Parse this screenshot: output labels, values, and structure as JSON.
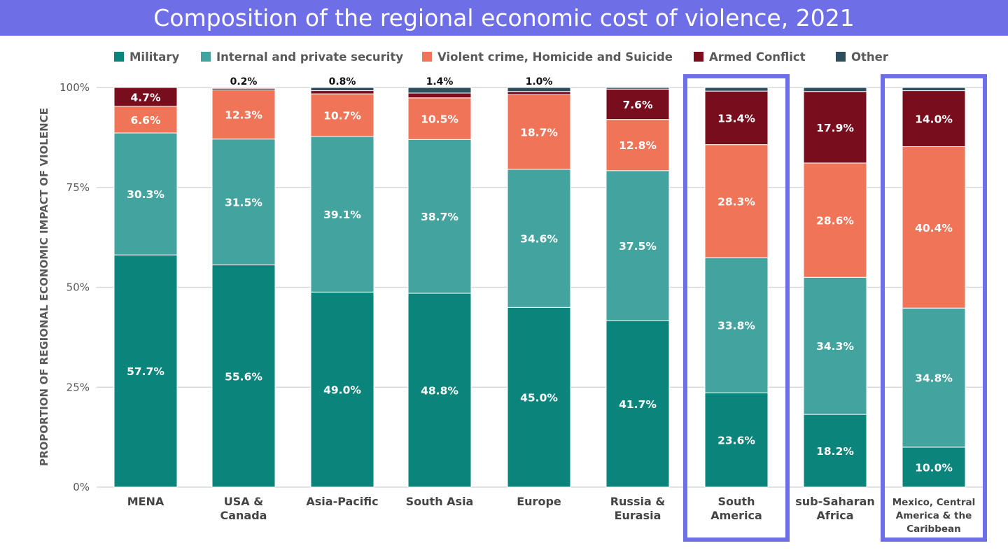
{
  "chart_data": {
    "type": "bar",
    "stacked": true,
    "title": "Composition of the regional economic cost of violence, 2021",
    "ylabel": "PROPORTION OF REGIONAL ECONOMIC IMPACT OF VIOLENCE",
    "xlabel": "",
    "ylim": [
      0,
      100
    ],
    "yticks": [
      "0%",
      "25%",
      "50%",
      "75%",
      "100%"
    ],
    "legend_position": "top",
    "grid": true,
    "categories": [
      "MENA",
      "USA &\nCanada",
      "Asia-Pacific",
      "South Asia",
      "Europe",
      "Russia &\nEurasia",
      "South\nAmerica",
      "sub-Saharan\nAfrica",
      "Mexico, Central\nAmerica & the\nCaribbean"
    ],
    "highlighted_categories": [
      "South\nAmerica",
      "Mexico, Central\nAmerica & the\nCaribbean"
    ],
    "highlight_color": "#6e6ee6",
    "series": [
      {
        "name": "Military",
        "color": "#0b857c",
        "values": [
          57.7,
          55.6,
          49.0,
          48.8,
          45.0,
          41.7,
          23.6,
          18.2,
          10.0
        ],
        "labels": [
          "57.7%",
          "55.6%",
          "49.0%",
          "48.8%",
          "45.0%",
          "41.7%",
          "23.6%",
          "18.2%",
          "10.0%"
        ]
      },
      {
        "name": "Internal and private security",
        "color": "#43a39e",
        "values": [
          30.3,
          31.5,
          39.1,
          38.7,
          34.6,
          37.5,
          33.8,
          34.3,
          34.8
        ],
        "labels": [
          "30.3%",
          "31.5%",
          "39.1%",
          "38.7%",
          "34.6%",
          "37.5%",
          "33.8%",
          "34.3%",
          "34.8%"
        ]
      },
      {
        "name": "Violent crime, Homicide and Suicide",
        "color": "#f07558",
        "values": [
          6.6,
          12.3,
          10.7,
          10.5,
          18.7,
          12.8,
          28.3,
          28.6,
          40.4
        ],
        "labels": [
          "6.6%",
          "12.3%",
          "10.7%",
          "10.5%",
          "18.7%",
          "12.8%",
          "28.3%",
          "28.6%",
          "40.4%"
        ]
      },
      {
        "name": "Armed Conflict",
        "color": "#780d1e",
        "values": [
          4.7,
          0.4,
          0.8,
          1.2,
          0.8,
          7.6,
          13.4,
          17.9,
          14.0
        ],
        "labels": [
          "4.7%",
          "",
          "",
          "",
          "",
          "7.6%",
          "13.4%",
          "17.9%",
          "14.0%"
        ]
      },
      {
        "name": "Other",
        "color": "#2b4f5c",
        "values": [
          0.0,
          0.2,
          0.8,
          1.4,
          1.0,
          0.4,
          0.9,
          1.0,
          0.8
        ],
        "labels": [
          "",
          "",
          "",
          "",
          "",
          "",
          "",
          "",
          ""
        ]
      }
    ],
    "top_labels": [
      "",
      "0.2%",
      "0.8%",
      "1.4%",
      "1.0%",
      "",
      "",
      "",
      ""
    ]
  }
}
